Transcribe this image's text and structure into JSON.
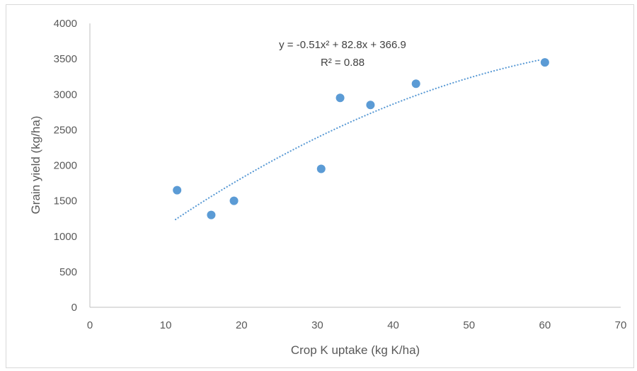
{
  "chart_data": {
    "type": "scatter",
    "xlabel": "Crop K uptake (kg K/ha)",
    "ylabel": "Grain yield (kg/ha)",
    "xlim": [
      0,
      70
    ],
    "ylim": [
      0,
      4000
    ],
    "x_ticks": [
      0,
      10,
      20,
      30,
      40,
      50,
      60,
      70
    ],
    "y_ticks": [
      0,
      500,
      1000,
      1500,
      2000,
      2500,
      3000,
      3500,
      4000
    ],
    "grid": false,
    "series": [
      {
        "x": [
          11.5,
          16,
          19,
          30.5,
          33,
          37,
          43,
          60
        ],
        "y": [
          1650,
          1300,
          1500,
          1950,
          2950,
          2850,
          3150,
          3450
        ],
        "color": "#5b9bd5"
      }
    ],
    "trendline": {
      "type": "polynomial",
      "order": 2,
      "coefficients": [
        -0.51,
        82.8,
        366.9
      ],
      "x_range": [
        11.3,
        59.5
      ],
      "style": "dotted",
      "color": "#5b9bd5"
    },
    "annotations": {
      "equation": "y = -0.51x² + 82.8x + 366.9",
      "r_squared": "R² = 0.88"
    }
  }
}
